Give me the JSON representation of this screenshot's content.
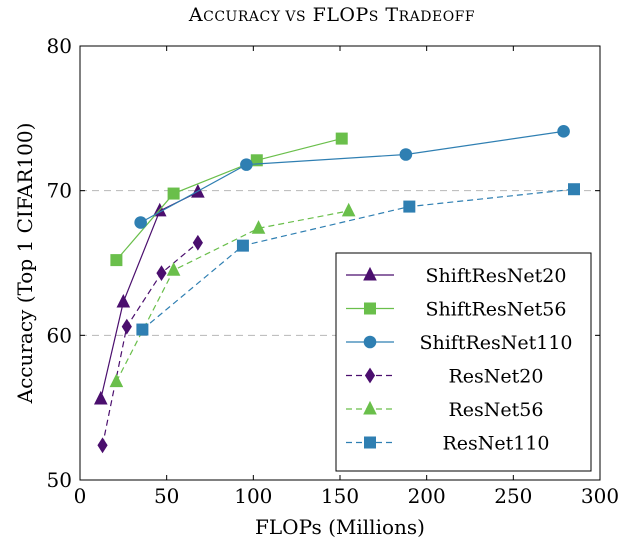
{
  "chart_data": {
    "type": "line",
    "title": "Accuracy vs FLOPs Tradeoff",
    "xlabel": "FLOPs (Millions)",
    "ylabel": "Accuracy (Top 1 CIFAR100)",
    "xlim": [
      0,
      300
    ],
    "ylim": [
      50,
      80
    ],
    "xticks": [
      "0",
      "50",
      "100",
      "150",
      "200",
      "250",
      "300"
    ],
    "yticks": [
      "50",
      "60",
      "70",
      "80"
    ],
    "grid": "horizontal dashed at y=60 and y=70",
    "legend_position": "bottom-right",
    "series": [
      {
        "name": "ShiftResNet20",
        "color": "#4b0f6e",
        "dash": "solid",
        "marker": "triangle",
        "x": [
          12,
          25,
          46,
          68
        ],
        "y": [
          55.6,
          62.3,
          68.6,
          69.9
        ]
      },
      {
        "name": "ShiftResNet56",
        "color": "#6abf4b",
        "dash": "solid",
        "marker": "square",
        "x": [
          21,
          54,
          102,
          151
        ],
        "y": [
          65.2,
          69.8,
          72.1,
          73.6
        ]
      },
      {
        "name": "ShiftResNet110",
        "color": "#2f7fb2",
        "dash": "solid",
        "marker": "circle",
        "x": [
          35,
          96,
          188,
          279
        ],
        "y": [
          67.8,
          71.8,
          72.5,
          74.1
        ]
      },
      {
        "name": "ResNet20",
        "color": "#4b0f6e",
        "dash": "dashed",
        "marker": "diamond",
        "x": [
          13,
          27,
          47,
          68
        ],
        "y": [
          52.4,
          60.6,
          64.3,
          66.4
        ]
      },
      {
        "name": "ResNet56",
        "color": "#6abf4b",
        "dash": "dashed",
        "marker": "triangle",
        "x": [
          21,
          54,
          103,
          155
        ],
        "y": [
          56.8,
          64.5,
          67.4,
          68.6
        ]
      },
      {
        "name": "ResNet110",
        "color": "#2f7fb2",
        "dash": "dashed",
        "marker": "square",
        "x": [
          36,
          94,
          190,
          285
        ],
        "y": [
          60.4,
          66.2,
          68.9,
          70.1
        ]
      }
    ]
  }
}
